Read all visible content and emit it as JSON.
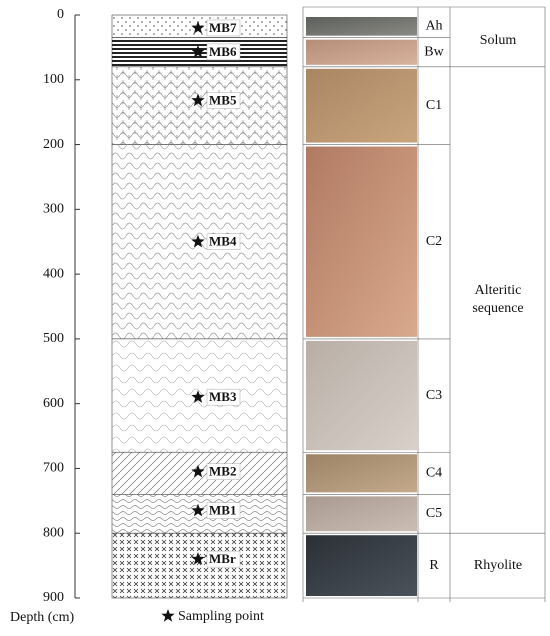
{
  "depth_axis": {
    "label": "Depth (cm)",
    "ticks": [
      0,
      100,
      200,
      300,
      400,
      500,
      600,
      700,
      800,
      900
    ],
    "lim": [
      0,
      900
    ]
  },
  "horizons": [
    {
      "label": "Ah",
      "top": 0,
      "bottom": 35
    },
    {
      "label": "Bw",
      "top": 35,
      "bottom": 80
    },
    {
      "label": "C1",
      "top": 80,
      "bottom": 200
    },
    {
      "label": "C2",
      "top": 200,
      "bottom": 500
    },
    {
      "label": "C3",
      "top": 500,
      "bottom": 675
    },
    {
      "label": "C4",
      "top": 675,
      "bottom": 740
    },
    {
      "label": "C5",
      "top": 740,
      "bottom": 800
    },
    {
      "label": "R",
      "top": 800,
      "bottom": 900
    }
  ],
  "groups": [
    {
      "label": "Solum",
      "top": 0,
      "bottom": 80
    },
    {
      "label": "Alteritic sequence",
      "top": 80,
      "bottom": 800
    },
    {
      "label": "Rhyolite",
      "top": 800,
      "bottom": 900
    }
  ],
  "samples": [
    {
      "label": "MB7",
      "depth": 20
    },
    {
      "label": "MB6",
      "depth": 57
    },
    {
      "label": "MB5",
      "depth": 132
    },
    {
      "label": "MB4",
      "depth": 350
    },
    {
      "label": "MB3",
      "depth": 590
    },
    {
      "label": "MB2",
      "depth": 705
    },
    {
      "label": "MB1",
      "depth": 765
    },
    {
      "label": "MBr",
      "depth": 840
    }
  ],
  "legend": {
    "label": "Sampling point"
  }
}
